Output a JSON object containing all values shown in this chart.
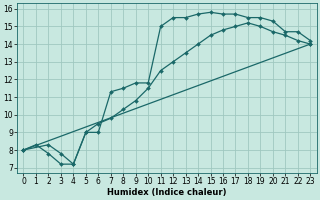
{
  "xlabel": "Humidex (Indice chaleur)",
  "background_color": "#c8e8e0",
  "grid_color": "#a0c8c0",
  "line_color": "#1a6868",
  "xlim": [
    -0.5,
    23.5
  ],
  "ylim": [
    6.7,
    16.3
  ],
  "xticks": [
    0,
    1,
    2,
    3,
    4,
    5,
    6,
    7,
    8,
    9,
    10,
    11,
    12,
    13,
    14,
    15,
    16,
    17,
    18,
    19,
    20,
    21,
    22,
    23
  ],
  "yticks": [
    7,
    8,
    9,
    10,
    11,
    12,
    13,
    14,
    15,
    16
  ],
  "curve1_x": [
    0,
    1,
    2,
    3,
    4,
    5,
    6,
    7,
    8,
    9,
    10,
    11,
    12,
    13,
    14,
    15,
    16,
    17,
    18,
    19,
    20,
    21,
    22,
    23
  ],
  "curve1_y": [
    8.0,
    8.3,
    7.8,
    7.2,
    7.2,
    9.0,
    9.0,
    11.3,
    11.5,
    11.8,
    11.8,
    15.0,
    15.5,
    15.5,
    15.7,
    15.8,
    15.7,
    15.7,
    15.5,
    15.5,
    15.3,
    14.7,
    14.7,
    14.2
  ],
  "curve2_x": [
    0,
    2,
    3,
    4,
    5,
    6,
    7,
    8,
    9,
    10,
    11,
    12,
    13,
    14,
    15,
    16,
    17,
    18,
    19,
    20,
    21,
    22,
    23
  ],
  "curve2_y": [
    8.0,
    8.3,
    7.8,
    7.2,
    9.0,
    9.5,
    9.8,
    10.3,
    10.8,
    11.5,
    12.5,
    13.0,
    13.5,
    14.0,
    14.5,
    14.8,
    15.0,
    15.2,
    15.0,
    14.7,
    14.5,
    14.2,
    14.0
  ],
  "curve3_x": [
    0,
    23
  ],
  "curve3_y": [
    8.0,
    14.0
  ],
  "markersize": 2.0,
  "linewidth": 0.9,
  "tick_fontsize": 5.5,
  "xlabel_fontsize": 6.0
}
